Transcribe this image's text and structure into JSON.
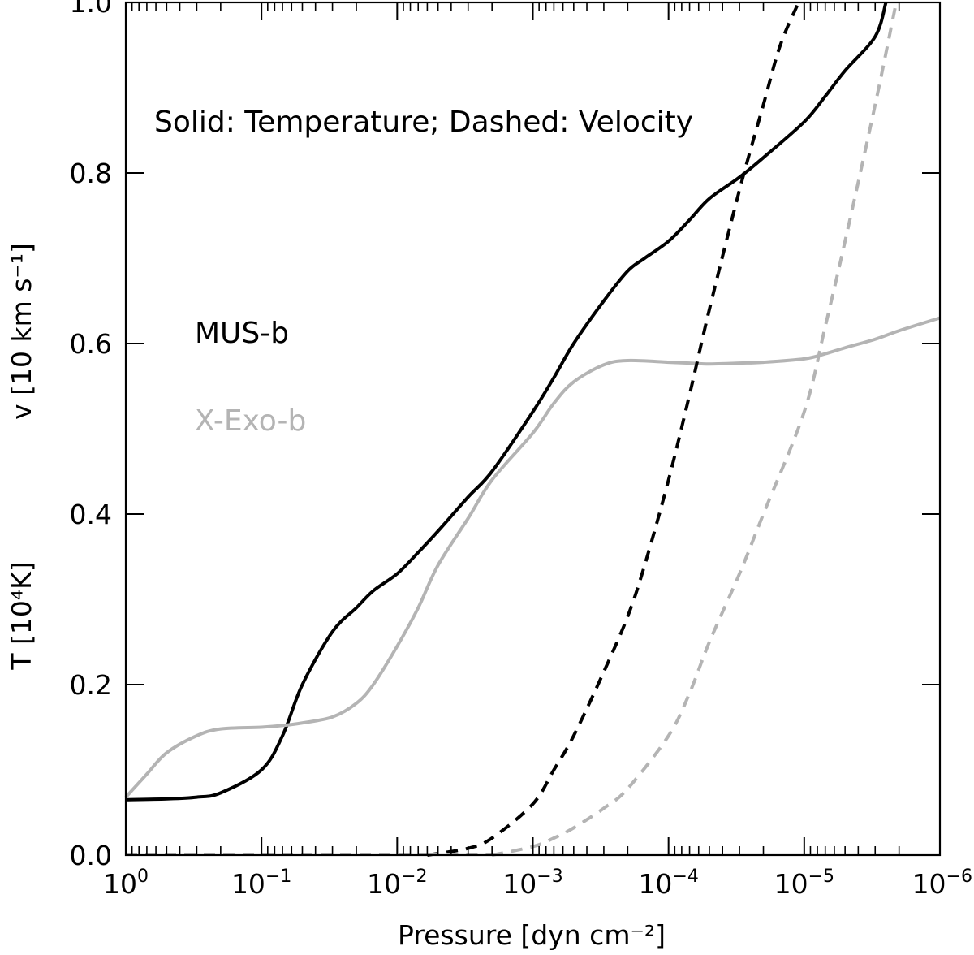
{
  "chart_data": {
    "type": "line",
    "xscale": "log",
    "xlabel": "Pressure [dyn cm⁻²]",
    "ylabel_left": "T [10⁴K]",
    "ylabel_right": "v [10 km s⁻¹]",
    "xlim": [
      1,
      1e-06
    ],
    "ylim": [
      0.0,
      1.0
    ],
    "x_ticks": [
      {
        "value": 1,
        "base": "10",
        "exp": "0"
      },
      {
        "value": 0.1,
        "base": "10",
        "exp": "−1"
      },
      {
        "value": 0.01,
        "base": "10",
        "exp": "−2"
      },
      {
        "value": 0.001,
        "base": "10",
        "exp": "−3"
      },
      {
        "value": 0.0001,
        "base": "10",
        "exp": "−4"
      },
      {
        "value": 1e-05,
        "base": "10",
        "exp": "−5"
      },
      {
        "value": 1e-06,
        "base": "10",
        "exp": "−6"
      }
    ],
    "y_ticks": [
      {
        "value": 0.0,
        "label": "0.0"
      },
      {
        "value": 0.2,
        "label": "0.2"
      },
      {
        "value": 0.4,
        "label": "0.4"
      },
      {
        "value": 0.6,
        "label": "0.6"
      },
      {
        "value": 0.8,
        "label": "0.8"
      },
      {
        "value": 1.0,
        "label": "1.0"
      }
    ],
    "annotation": "Solid: Temperature; Dashed: Velocity",
    "legend": [
      {
        "label": "MUS-b",
        "color": "#000000"
      },
      {
        "label": "X-Exo-b",
        "color": "#b4b4b4"
      }
    ],
    "series": [
      {
        "planet": "MUS-b",
        "quantity": "Temperature",
        "color": "#000000",
        "dash": "solid",
        "x": [
          1,
          0.5,
          0.3,
          0.2,
          0.1,
          0.07,
          0.05,
          0.03,
          0.02,
          0.015,
          0.01,
          0.007,
          0.005,
          0.003,
          0.002,
          0.001,
          0.0007,
          0.0005,
          0.0003,
          0.0002,
          0.00015,
          0.0001,
          7e-05,
          5e-05,
          3e-05,
          2e-05,
          1e-05,
          7e-06,
          5e-06,
          3e-06,
          2.5e-06
        ],
        "y": [
          0.065,
          0.066,
          0.068,
          0.073,
          0.1,
          0.14,
          0.2,
          0.262,
          0.29,
          0.31,
          0.33,
          0.355,
          0.38,
          0.42,
          0.45,
          0.52,
          0.56,
          0.6,
          0.65,
          0.685,
          0.7,
          0.72,
          0.745,
          0.77,
          0.795,
          0.818,
          0.86,
          0.89,
          0.92,
          0.96,
          1.0
        ]
      },
      {
        "planet": "X-Exo-b",
        "quantity": "Temperature",
        "color": "#b4b4b4",
        "dash": "solid",
        "x": [
          1,
          0.7,
          0.5,
          0.3,
          0.2,
          0.1,
          0.07,
          0.05,
          0.03,
          0.02,
          0.015,
          0.01,
          0.007,
          0.005,
          0.003,
          0.002,
          0.001,
          0.0007,
          0.0005,
          0.0003,
          0.0002,
          0.0001,
          7e-05,
          5e-05,
          3e-05,
          2e-05,
          1e-05,
          7e-06,
          5e-06,
          3e-06,
          2e-06,
          1e-06
        ],
        "y": [
          0.068,
          0.095,
          0.12,
          0.14,
          0.148,
          0.15,
          0.152,
          0.155,
          0.162,
          0.178,
          0.2,
          0.245,
          0.29,
          0.34,
          0.395,
          0.44,
          0.495,
          0.53,
          0.555,
          0.575,
          0.58,
          0.578,
          0.577,
          0.576,
          0.577,
          0.578,
          0.582,
          0.588,
          0.595,
          0.605,
          0.615,
          0.63
        ]
      },
      {
        "planet": "MUS-b",
        "quantity": "Velocity",
        "color": "#000000",
        "dash": "dashed",
        "x": [
          0.006,
          0.003,
          0.002,
          0.001,
          0.0007,
          0.0005,
          0.0003,
          0.0002,
          0.00015,
          0.0001,
          7e-05,
          5e-05,
          3e-05,
          2e-05,
          1.5e-05,
          1.1e-05
        ],
        "y": [
          0.0,
          0.008,
          0.02,
          0.06,
          0.1,
          0.14,
          0.215,
          0.28,
          0.34,
          0.44,
          0.54,
          0.64,
          0.78,
          0.88,
          0.95,
          1.0
        ]
      },
      {
        "planet": "X-Exo-b",
        "quantity": "Velocity",
        "color": "#b4b4b4",
        "dash": "dashed",
        "x": [
          0.002,
          0.001,
          0.0007,
          0.0005,
          0.0003,
          0.0002,
          0.0001,
          7e-05,
          5e-05,
          3e-05,
          2e-05,
          1e-05,
          7e-06,
          5e-06,
          3e-06,
          2.1e-06
        ],
        "y": [
          0.0,
          0.01,
          0.02,
          0.032,
          0.055,
          0.078,
          0.14,
          0.19,
          0.25,
          0.33,
          0.4,
          0.52,
          0.62,
          0.72,
          0.88,
          1.0
        ]
      }
    ]
  }
}
